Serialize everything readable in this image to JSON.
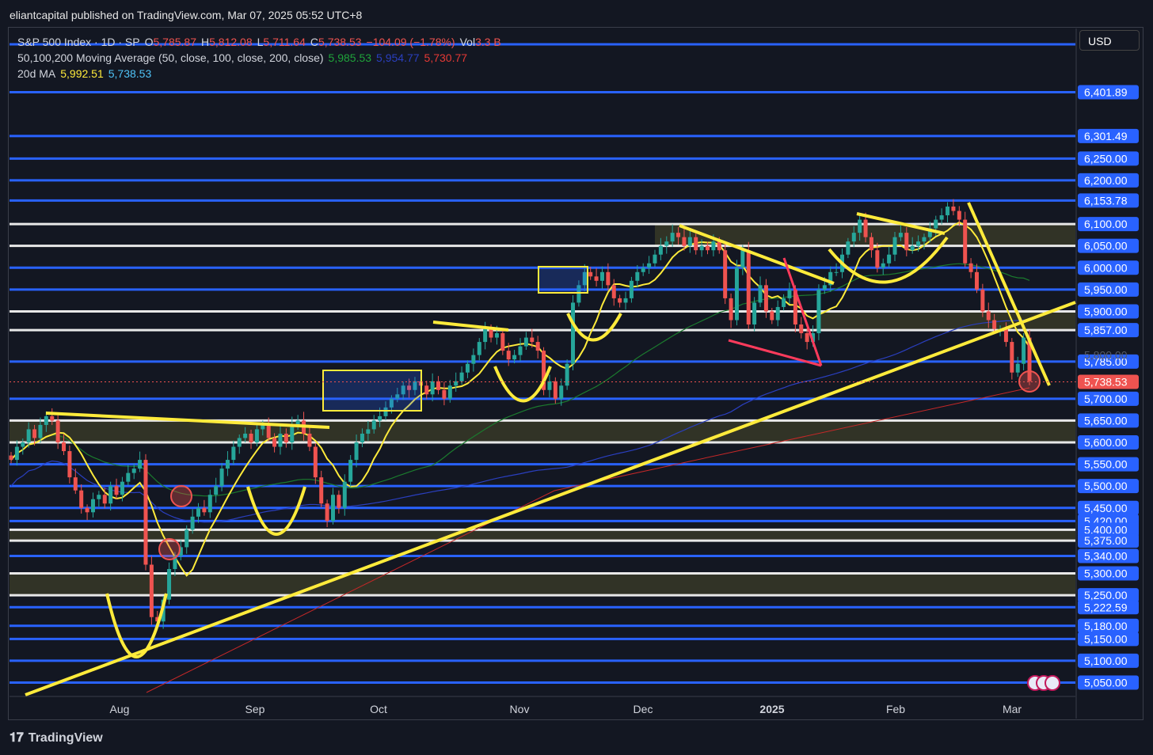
{
  "publisher_line": "eliantcapital published on TradingView.com, Mar 07, 2025 05:52 UTC+8",
  "legend": {
    "symbol": "S&P 500 Index · 1D · SP",
    "o_label": "O",
    "o": "5,785.87",
    "h_label": "H",
    "h": "5,812.08",
    "l_label": "L",
    "l": "5,711.64",
    "c_label": "C",
    "c": "5,738.53",
    "change": "−104.09 (−1.78%)",
    "vol_label": "Vol",
    "vol": "3.3 B",
    "ma_name": "50,100,200 Moving Average (50, close, 100, close, 200, close)",
    "ma50": "5,985.53",
    "ma100": "5,954.77",
    "ma200": "5,730.77",
    "ma20_name": "20d MA",
    "ma20a": "5,992.51",
    "ma20b": "5,738.53"
  },
  "currency_button": "USD",
  "brand": "TradingView",
  "colors": {
    "bg": "#131722",
    "up": "#26a69a",
    "down": "#ef5350",
    "level": "#2962ff",
    "yellow": "#ffeb3b"
  },
  "chart_data": {
    "type": "candlestick",
    "title": "S&P 500 Index · 1D · SP",
    "ylim": [
      5030,
      6450
    ],
    "x_tick_labels": [
      "Aug",
      "Sep",
      "Oct",
      "Nov",
      "Dec",
      "2025",
      "Feb",
      "Mar"
    ],
    "price_levels": [
      "6,401.89",
      "6,301.49",
      "6,250.00",
      "6,200.00",
      "6,153.78",
      "6,100.00",
      "6,050.00",
      "6,000.00",
      "5,950.00",
      "5,900.00",
      "5,857.00",
      "5,785.00",
      "5,700.00",
      "5,650.00",
      "5,600.00",
      "5,550.00",
      "5,500.00",
      "5,450.00",
      "5,420.00",
      "5,400.00",
      "5,375.00",
      "5,340.00",
      "5,300.00",
      "5,250.00",
      "5,222.59",
      "5,180.00",
      "5,150.00",
      "5,100.00",
      "5,050.00"
    ],
    "faded_label": "5,800.00",
    "last_price": "5,738.53",
    "closes": [
      5560,
      5590,
      5600,
      5630,
      5610,
      5640,
      5660,
      5650,
      5600,
      5580,
      5520,
      5490,
      5450,
      5440,
      5470,
      5480,
      5460,
      5500,
      5480,
      5510,
      5530,
      5540,
      5560,
      5320,
      5200,
      5190,
      5240,
      5310,
      5340,
      5360,
      5400,
      5430,
      5450,
      5440,
      5480,
      5500,
      5540,
      5560,
      5590,
      5610,
      5620,
      5600,
      5630,
      5640,
      5610,
      5590,
      5620,
      5600,
      5640,
      5650,
      5620,
      5590,
      5520,
      5460,
      5420,
      5480,
      5450,
      5510,
      5560,
      5600,
      5620,
      5630,
      5650,
      5660,
      5680,
      5700,
      5710,
      5730,
      5720,
      5740,
      5730,
      5710,
      5740,
      5720,
      5700,
      5730,
      5740,
      5760,
      5780,
      5800,
      5830,
      5860,
      5840,
      5850,
      5810,
      5790,
      5800,
      5820,
      5840,
      5830,
      5810,
      5720,
      5740,
      5700,
      5730,
      5780,
      5920,
      5960,
      5990,
      5980,
      5970,
      5990,
      5960,
      5930,
      5920,
      5930,
      5970,
      5990,
      6000,
      6010,
      6030,
      6050,
      6060,
      6080,
      6070,
      6050,
      6070,
      6040,
      6050,
      6040,
      6060,
      6040,
      5930,
      5880,
      6000,
      6040,
      5870,
      5920,
      5960,
      5900,
      5880,
      5910,
      5930,
      5950,
      5870,
      5850,
      5830,
      5850,
      5950,
      5960,
      5990,
      5990,
      6030,
      6060,
      6080,
      6110,
      6070,
      6040,
      6000,
      6010,
      6030,
      6070,
      6080,
      6040,
      6050,
      6060,
      6070,
      6090,
      6110,
      6120,
      6140,
      6130,
      6110,
      6010,
      5990,
      5950,
      5900,
      5880,
      5860,
      5860,
      5830,
      5760,
      5780,
      5840,
      5740
    ]
  }
}
